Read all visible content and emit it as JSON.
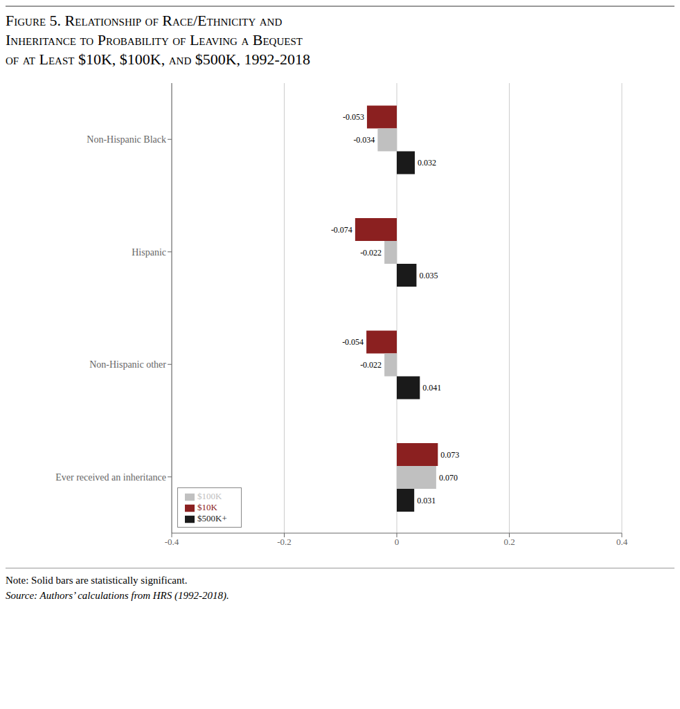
{
  "chart_data": {
    "type": "bar",
    "orientation": "horizontal",
    "title": "Figure 5. Relationship of Race/Ethnicity and\nInheritance to Probability of Leaving a Bequest\nof at Least $10K, $100K, and $500K, 1992-2018",
    "annotations": [
      "Note: Solid bars are statistically significant.",
      "Source: Authors’ calculations from HRS (1992-2018)."
    ],
    "categories": [
      "Non-Hispanic Black",
      "Hispanic",
      "Non-Hispanic other",
      "Ever received an inheritance"
    ],
    "series": [
      {
        "name": "$10K",
        "color": "#8B2020",
        "values": [
          -0.053,
          -0.074,
          -0.054,
          0.073
        ],
        "value_labels": [
          "-0.053",
          "-0.074",
          "-0.054",
          "0.073"
        ]
      },
      {
        "name": "$100K",
        "color": "#C0C0C0",
        "values": [
          -0.034,
          -0.022,
          -0.022,
          0.07
        ],
        "value_labels": [
          "-0.034",
          "-0.022",
          "-0.022",
          "0.070"
        ]
      },
      {
        "name": "$500K+",
        "color": "#1A1A1A",
        "values": [
          0.032,
          0.035,
          0.041,
          0.031
        ],
        "value_labels": [
          "0.032",
          "0.035",
          "0.041",
          "0.031"
        ]
      }
    ],
    "xlim": [
      -0.4,
      0.4
    ],
    "xticks": [
      -0.4,
      -0.2,
      0,
      0.2,
      0.4
    ],
    "grid": true,
    "legend": "lower left",
    "data_labels": true
  }
}
